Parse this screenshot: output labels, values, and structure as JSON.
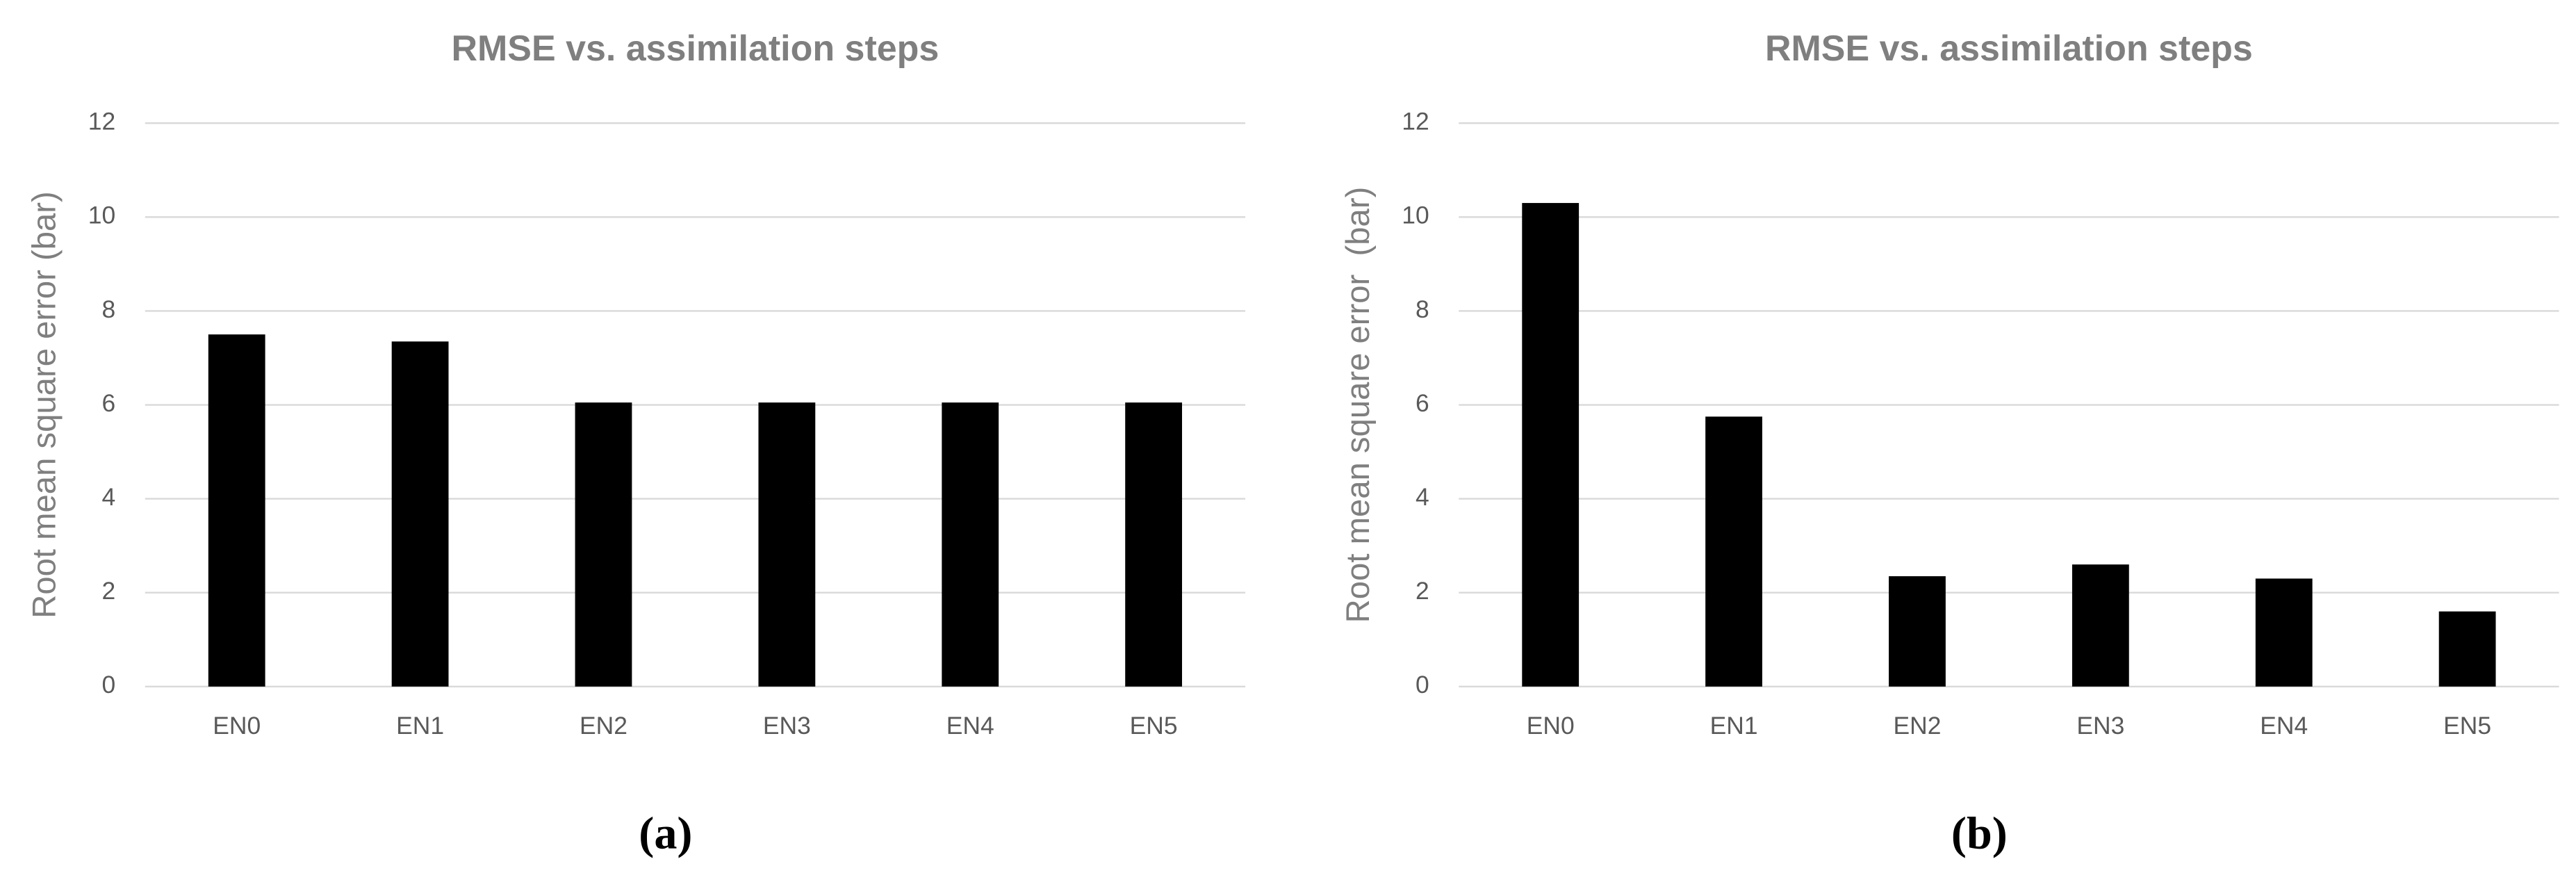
{
  "chart_data": [
    {
      "type": "bar",
      "title": "RMSE vs. assimilation steps",
      "y_label": "Root mean square error (bar)",
      "categories": [
        "EN0",
        "EN1",
        "EN2",
        "EN3",
        "EN4",
        "EN5"
      ],
      "values": [
        7.5,
        7.35,
        6.05,
        6.05,
        6.05,
        6.05
      ],
      "color": "#000000",
      "ylim": [
        0,
        12
      ],
      "yticks": [
        0,
        2,
        4,
        6,
        8,
        10,
        12
      ],
      "grid": true,
      "caption": "(a)"
    },
    {
      "type": "bar",
      "title": "RMSE vs. assimilation steps",
      "y_label": "Root mean square error  (bar)",
      "categories": [
        "EN0",
        "EN1",
        "EN2",
        "EN3",
        "EN4",
        "EN5"
      ],
      "values": [
        10.3,
        5.75,
        2.35,
        2.6,
        2.3,
        1.6
      ],
      "color": "#000000",
      "ylim": [
        0,
        12
      ],
      "yticks": [
        0,
        2,
        4,
        6,
        8,
        10,
        12
      ],
      "grid": true,
      "caption": "(b)"
    }
  ]
}
